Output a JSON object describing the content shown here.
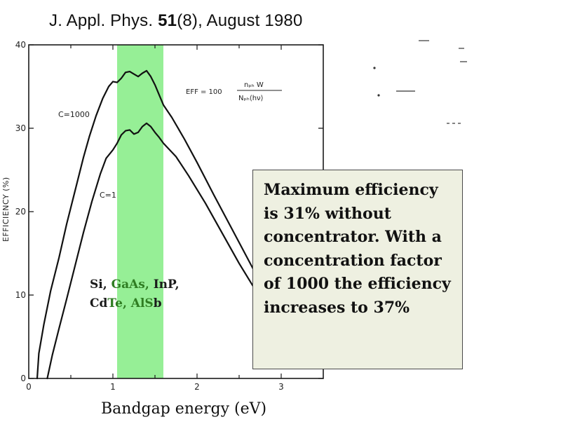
{
  "citation": {
    "prefix": "J. Appl. Phys. ",
    "volume": "51",
    "rest": "(8), August 1980"
  },
  "chart_data": {
    "type": "line",
    "xlabel": "Bandgap energy (eV)",
    "ylabel": "EFFICIENCY (%)",
    "xlim": [
      0,
      3.5
    ],
    "ylim": [
      0,
      40
    ],
    "xticks": [
      0,
      1,
      2,
      3
    ],
    "yticks": [
      0,
      10,
      20,
      30,
      40
    ],
    "grid": false,
    "highlight_band": {
      "x": [
        1.05,
        1.6
      ],
      "color": "#90ee90"
    },
    "formula": {
      "lhs": "EFF = 100",
      "numerator": "nₚₕ W",
      "denominator": "Nₚₕ⟨hν⟩"
    },
    "series": [
      {
        "name": "C=1000",
        "x": [
          0.1,
          0.12,
          0.18,
          0.26,
          0.36,
          0.45,
          0.55,
          0.65,
          0.72,
          0.8,
          0.88,
          0.95,
          1.0,
          1.05,
          1.1,
          1.15,
          1.2,
          1.25,
          1.3,
          1.35,
          1.4,
          1.45,
          1.5,
          1.55,
          1.6,
          1.7,
          1.85,
          2.0,
          2.2,
          2.4,
          2.6,
          2.8,
          2.95,
          3.0,
          3.03
        ],
        "y": [
          0,
          3.0,
          6.5,
          10.5,
          14.5,
          18.5,
          22.5,
          26.5,
          29.0,
          31.5,
          33.6,
          35.0,
          35.6,
          35.5,
          36.0,
          36.7,
          36.8,
          36.5,
          36.2,
          36.6,
          36.9,
          36.2,
          35.2,
          34.0,
          32.8,
          31.3,
          28.7,
          25.9,
          22.0,
          18.2,
          14.4,
          10.6,
          7.8,
          6.8,
          6.3
        ]
      },
      {
        "name": "C=1",
        "x": [
          0.22,
          0.28,
          0.36,
          0.45,
          0.55,
          0.65,
          0.75,
          0.85,
          0.92,
          1.0,
          1.05,
          1.1,
          1.15,
          1.2,
          1.25,
          1.3,
          1.35,
          1.4,
          1.45,
          1.5,
          1.55,
          1.6,
          1.75,
          1.9,
          2.1,
          2.3,
          2.5,
          2.7,
          2.9,
          3.0,
          3.05
        ],
        "y": [
          0,
          2.8,
          6.0,
          9.5,
          13.5,
          17.5,
          21.2,
          24.5,
          26.4,
          27.4,
          28.2,
          29.2,
          29.7,
          29.8,
          29.3,
          29.5,
          30.2,
          30.6,
          30.2,
          29.5,
          28.9,
          28.2,
          26.6,
          24.3,
          21.0,
          17.4,
          13.8,
          10.5,
          7.2,
          5.8,
          5.2
        ]
      }
    ]
  },
  "materials": [
    {
      "text": "Si, ",
      "highlight": false
    },
    {
      "text": "GaAs, ",
      "highlight": true
    },
    {
      "text": "InP,",
      "highlight": false
    },
    {
      "text": "\n",
      "highlight": false
    },
    {
      "text": "Cd",
      "highlight": false
    },
    {
      "text": "Te, AlS",
      "highlight": true
    },
    {
      "text": "b",
      "highlight": false
    }
  ],
  "note": "Maximum efficiency is 31% without concentrator. With a concentration factor of 1000 the efficiency increases to 37%"
}
